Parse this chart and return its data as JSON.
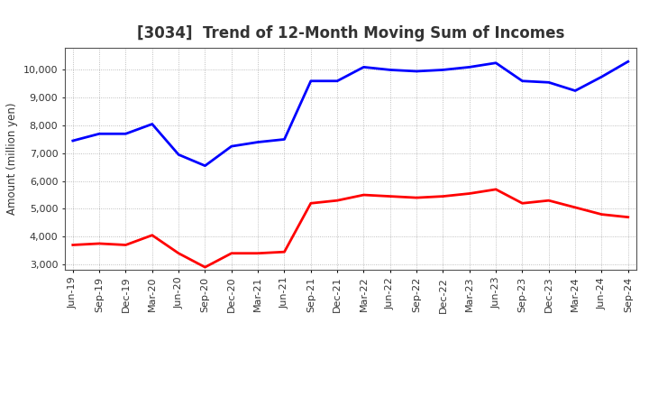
{
  "title": "[3034]  Trend of 12-Month Moving Sum of Incomes",
  "ylabel": "Amount (million yen)",
  "x_labels": [
    "Jun-19",
    "Sep-19",
    "Dec-19",
    "Mar-20",
    "Jun-20",
    "Sep-20",
    "Dec-20",
    "Mar-21",
    "Jun-21",
    "Sep-21",
    "Dec-21",
    "Mar-22",
    "Jun-22",
    "Sep-22",
    "Dec-22",
    "Mar-23",
    "Jun-23",
    "Sep-23",
    "Dec-23",
    "Mar-24",
    "Jun-24",
    "Sep-24"
  ],
  "ordinary_income": [
    7450,
    7700,
    7700,
    8050,
    6950,
    6550,
    7250,
    7400,
    7500,
    9600,
    9600,
    10100,
    10000,
    9950,
    10000,
    10100,
    10250,
    9600,
    9550,
    9250,
    9750,
    10300
  ],
  "net_income": [
    3700,
    3750,
    3700,
    4050,
    3400,
    2900,
    3400,
    3400,
    3450,
    5200,
    5300,
    5500,
    5450,
    5400,
    5450,
    5550,
    5700,
    5200,
    5300,
    5050,
    4800,
    4700
  ],
  "ordinary_color": "#0000ff",
  "net_color": "#ff0000",
  "ylim_min": 2800,
  "ylim_max": 10800,
  "yticks": [
    3000,
    4000,
    5000,
    6000,
    7000,
    8000,
    9000,
    10000
  ],
  "background_color": "#ffffff",
  "grid_color": "#999999",
  "line_width": 2.0,
  "title_fontsize": 12,
  "title_color": "#333333",
  "label_fontsize": 8.5,
  "tick_fontsize": 8,
  "ylabel_fontsize": 8.5
}
